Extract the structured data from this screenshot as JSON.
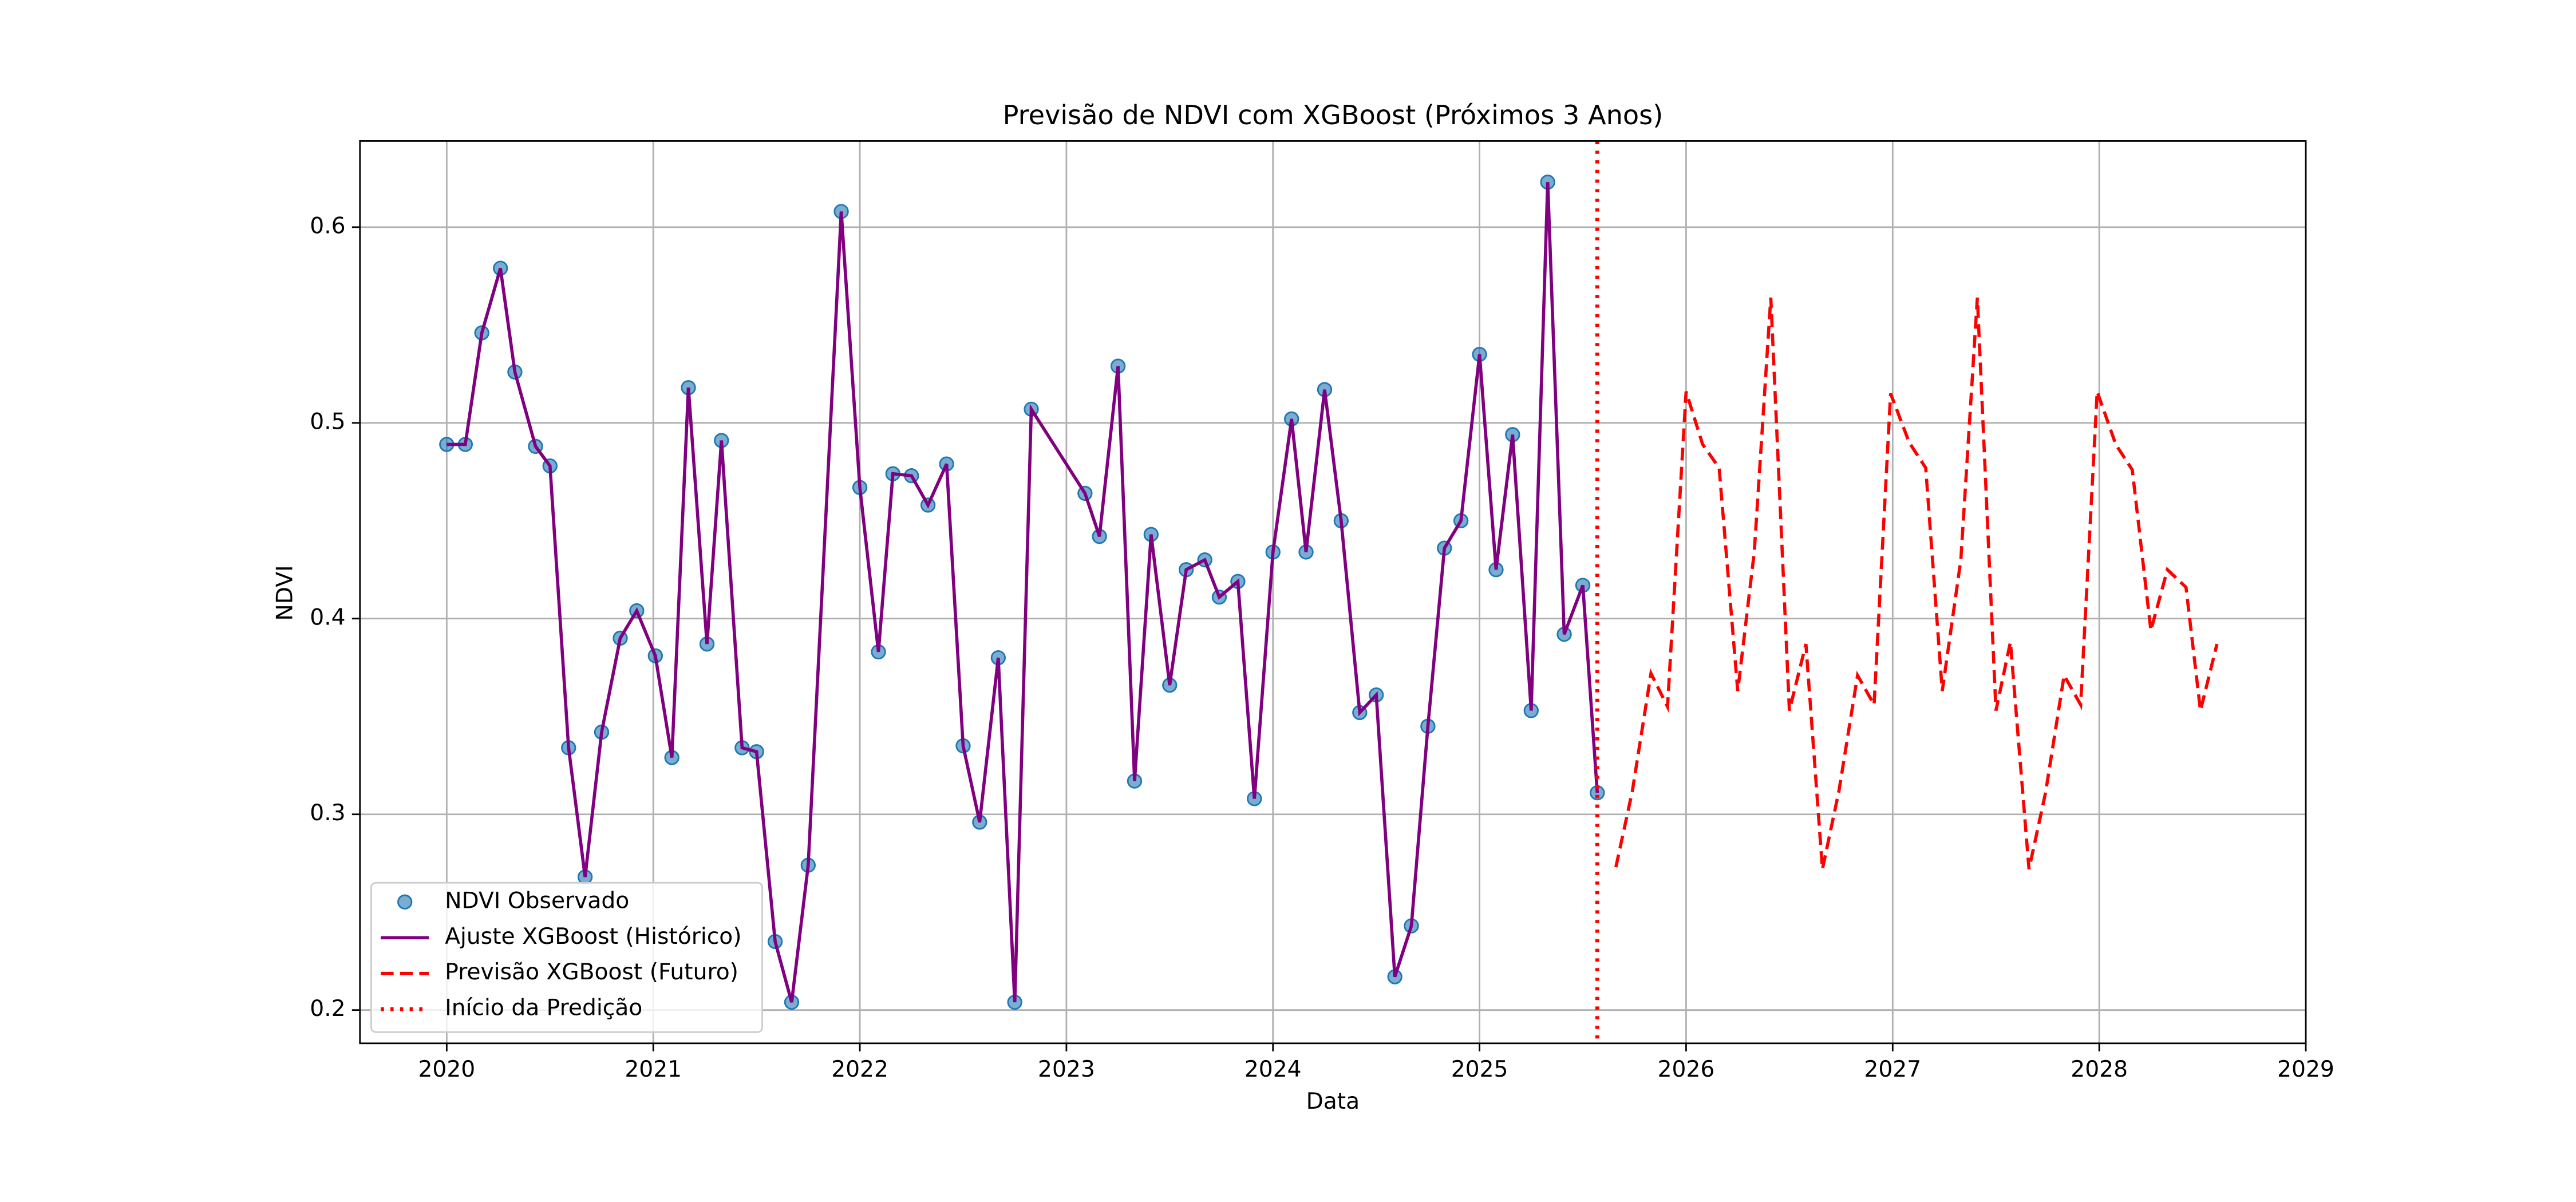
{
  "chart_data": {
    "type": "line",
    "title": "Previsão de NDVI com XGBoost (Próximos 3 Anos)",
    "x_label": "Data",
    "y_label": "NDVI",
    "xlim": [
      2019.58,
      2029.0
    ],
    "ylim": [
      0.183,
      0.644
    ],
    "xticks": [
      2020,
      2021,
      2022,
      2023,
      2024,
      2025,
      2026,
      2027,
      2028,
      2029
    ],
    "yticks": [
      0.2,
      0.3,
      0.4,
      0.5,
      0.6
    ],
    "grid": true,
    "legend": "lower left",
    "series": [
      {
        "name": "NDVI Observado",
        "color": "#1f77b4",
        "style": "marker",
        "x": [
          2020.0,
          2020.09,
          2020.17,
          2020.26,
          2020.33,
          2020.43,
          2020.5,
          2020.59,
          2020.67,
          2020.75,
          2020.84,
          2020.92,
          2021.01,
          2021.09,
          2021.17,
          2021.26,
          2021.33,
          2021.43,
          2021.5,
          2021.59,
          2021.67,
          2021.75,
          2021.91,
          2022.0,
          2022.09,
          2022.16,
          2022.25,
          2022.33,
          2022.42,
          2022.5,
          2022.58,
          2022.67,
          2022.75,
          2022.83,
          2023.09,
          2023.16,
          2023.25,
          2023.33,
          2023.41,
          2023.5,
          2023.58,
          2023.67,
          2023.74,
          2023.83,
          2023.91,
          2024.0,
          2024.09,
          2024.16,
          2024.25,
          2024.33,
          2024.42,
          2024.5,
          2024.59,
          2024.67,
          2024.75,
          2024.83,
          2024.91,
          2025.0,
          2025.08,
          2025.16,
          2025.25,
          2025.33,
          2025.41,
          2025.5,
          2025.57
        ],
        "values": [
          0.489,
          0.489,
          0.546,
          0.579,
          0.526,
          0.488,
          0.478,
          0.334,
          0.268,
          0.342,
          0.39,
          0.404,
          0.381,
          0.329,
          0.518,
          0.387,
          0.491,
          0.334,
          0.332,
          0.235,
          0.204,
          0.274,
          0.608,
          0.467,
          0.383,
          0.474,
          0.473,
          0.458,
          0.479,
          0.335,
          0.296,
          0.38,
          0.204,
          0.507,
          0.464,
          0.442,
          0.529,
          0.317,
          0.443,
          0.366,
          0.425,
          0.43,
          0.411,
          0.419,
          0.308,
          0.434,
          0.502,
          0.434,
          0.517,
          0.45,
          0.352,
          0.361,
          0.217,
          0.243,
          0.345,
          0.436,
          0.45,
          0.535,
          0.425,
          0.494,
          0.353,
          0.623,
          0.392,
          0.417,
          0.311
        ]
      },
      {
        "name": "Ajuste XGBoost (Histórico)",
        "color": "#800080",
        "style": "solid",
        "x": [
          2020.0,
          2020.09,
          2020.17,
          2020.26,
          2020.33,
          2020.43,
          2020.5,
          2020.59,
          2020.67,
          2020.75,
          2020.84,
          2020.92,
          2021.01,
          2021.09,
          2021.17,
          2021.26,
          2021.33,
          2021.43,
          2021.5,
          2021.59,
          2021.67,
          2021.75,
          2021.91,
          2022.0,
          2022.09,
          2022.16,
          2022.25,
          2022.33,
          2022.42,
          2022.5,
          2022.58,
          2022.67,
          2022.75,
          2022.83,
          2023.09,
          2023.16,
          2023.25,
          2023.33,
          2023.41,
          2023.5,
          2023.58,
          2023.67,
          2023.74,
          2023.83,
          2023.91,
          2024.0,
          2024.09,
          2024.16,
          2024.25,
          2024.33,
          2024.42,
          2024.5,
          2024.59,
          2024.67,
          2024.75,
          2024.83,
          2024.91,
          2025.0,
          2025.08,
          2025.16,
          2025.25,
          2025.33,
          2025.41,
          2025.5,
          2025.57
        ],
        "values": [
          0.489,
          0.489,
          0.546,
          0.579,
          0.526,
          0.488,
          0.478,
          0.334,
          0.268,
          0.342,
          0.39,
          0.404,
          0.381,
          0.329,
          0.518,
          0.387,
          0.491,
          0.334,
          0.332,
          0.235,
          0.204,
          0.274,
          0.608,
          0.467,
          0.383,
          0.474,
          0.473,
          0.458,
          0.479,
          0.335,
          0.296,
          0.38,
          0.204,
          0.507,
          0.464,
          0.442,
          0.529,
          0.317,
          0.443,
          0.366,
          0.425,
          0.43,
          0.411,
          0.419,
          0.308,
          0.434,
          0.502,
          0.434,
          0.517,
          0.45,
          0.352,
          0.361,
          0.217,
          0.243,
          0.345,
          0.436,
          0.45,
          0.535,
          0.425,
          0.494,
          0.353,
          0.623,
          0.392,
          0.417,
          0.311
        ]
      },
      {
        "name": "Previsão XGBoost (Futuro)",
        "color": "#ff0000",
        "style": "dashed",
        "x": [
          2025.66,
          2025.74,
          2025.83,
          2025.91,
          2026.0,
          2026.08,
          2026.16,
          2026.25,
          2026.33,
          2026.41,
          2026.5,
          2026.58,
          2026.66,
          2026.74,
          2026.83,
          2026.91,
          2026.99,
          2027.08,
          2027.16,
          2027.24,
          2027.33,
          2027.41,
          2027.5,
          2027.57,
          2027.66,
          2027.74,
          2027.83,
          2027.91,
          2027.99,
          2028.08,
          2028.16,
          2028.25,
          2028.33,
          2028.42,
          2028.49,
          2028.57
        ],
        "values": [
          0.273,
          0.312,
          0.372,
          0.355,
          0.516,
          0.489,
          0.477,
          0.363,
          0.434,
          0.564,
          0.353,
          0.387,
          0.272,
          0.312,
          0.371,
          0.356,
          0.515,
          0.49,
          0.477,
          0.363,
          0.43,
          0.564,
          0.353,
          0.388,
          0.272,
          0.311,
          0.371,
          0.356,
          0.516,
          0.489,
          0.476,
          0.394,
          0.425,
          0.416,
          0.353,
          0.387
        ]
      },
      {
        "name": "Início da Predição",
        "color": "#ff0000",
        "style": "dotted",
        "x": 2025.57
      }
    ]
  }
}
